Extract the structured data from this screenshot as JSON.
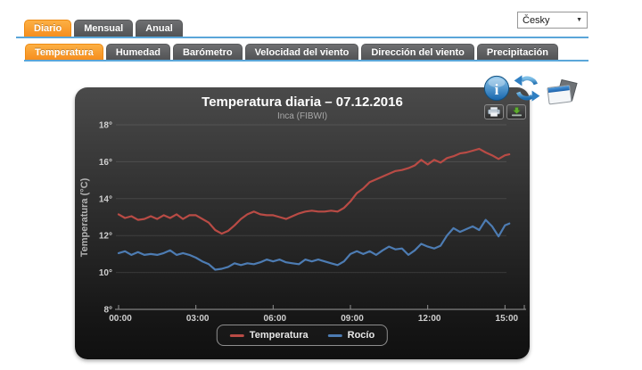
{
  "header": {
    "period_tabs": [
      {
        "label": "Diario",
        "active": true
      },
      {
        "label": "Mensual",
        "active": false
      },
      {
        "label": "Anual",
        "active": false
      }
    ],
    "metric_tabs": [
      {
        "label": "Temperatura",
        "active": true
      },
      {
        "label": "Humedad",
        "active": false
      },
      {
        "label": "Barómetro",
        "active": false
      },
      {
        "label": "Velocidad del viento",
        "active": false
      },
      {
        "label": "Dirección del viento",
        "active": false
      },
      {
        "label": "Precipitación",
        "active": false
      }
    ],
    "language_select": {
      "value": "Česky"
    }
  },
  "chart_data": {
    "type": "line",
    "title": "Temperatura diaria – 07.12.2016",
    "subtitle": "Inca (FIBWI)",
    "ylabel": "Temperatura (°C)",
    "xlabel": "",
    "ylim": [
      8,
      18
    ],
    "xlim_hours": [
      0,
      15.75
    ],
    "grid": "horizontal-only",
    "legend_position": "bottom-center",
    "background": "dark-gradient",
    "axis_label_color": "#cfcfcf",
    "yticks": [
      {
        "v": 18,
        "label": "18°"
      },
      {
        "v": 16,
        "label": "16°"
      },
      {
        "v": 14,
        "label": "14°"
      },
      {
        "v": 12,
        "label": "12°"
      },
      {
        "v": 10,
        "label": "10°"
      },
      {
        "v": 8,
        "label": "8°"
      }
    ],
    "xticks": [
      {
        "h": 0,
        "label": "00:00"
      },
      {
        "h": 3,
        "label": "03:00"
      },
      {
        "h": 6,
        "label": "06:00"
      },
      {
        "h": 9,
        "label": "09:00"
      },
      {
        "h": 12,
        "label": "12:00"
      },
      {
        "h": 15,
        "label": "15:00"
      }
    ],
    "x_hours": [
      0,
      0.25,
      0.5,
      0.75,
      1,
      1.25,
      1.5,
      1.75,
      2,
      2.25,
      2.5,
      2.75,
      3,
      3.25,
      3.5,
      3.75,
      4,
      4.25,
      4.5,
      4.75,
      5,
      5.25,
      5.5,
      5.75,
      6,
      6.25,
      6.5,
      6.75,
      7,
      7.25,
      7.5,
      7.75,
      8,
      8.25,
      8.5,
      8.75,
      9,
      9.25,
      9.5,
      9.75,
      10,
      10.25,
      10.5,
      10.75,
      11,
      11.25,
      11.5,
      11.75,
      12,
      12.25,
      12.5,
      12.75,
      13,
      13.25,
      13.5,
      13.75,
      14,
      14.25,
      14.5,
      14.75,
      15,
      15.17
    ],
    "series": [
      {
        "name": "Temperatura",
        "color": "#b94b45",
        "values": [
          13.15,
          12.95,
          13.05,
          12.85,
          12.9,
          13.05,
          12.9,
          13.1,
          12.95,
          13.15,
          12.9,
          13.1,
          13.1,
          12.9,
          12.7,
          12.3,
          12.1,
          12.25,
          12.55,
          12.9,
          13.15,
          13.3,
          13.15,
          13.1,
          13.1,
          13,
          12.9,
          13.05,
          13.2,
          13.3,
          13.35,
          13.3,
          13.3,
          13.35,
          13.3,
          13.5,
          13.85,
          14.3,
          14.55,
          14.9,
          15.05,
          15.2,
          15.35,
          15.5,
          15.55,
          15.65,
          15.8,
          16.1,
          15.85,
          16.1,
          15.95,
          16.2,
          16.3,
          16.45,
          16.5,
          16.6,
          16.7,
          16.5,
          16.35,
          16.15,
          16.35,
          16.4
        ]
      },
      {
        "name": "Rocío",
        "color": "#4d7cb3",
        "values": [
          11.05,
          11.15,
          10.95,
          11.1,
          10.95,
          11,
          10.95,
          11.05,
          11.2,
          10.95,
          11.05,
          10.95,
          10.8,
          10.6,
          10.45,
          10.15,
          10.2,
          10.3,
          10.5,
          10.4,
          10.5,
          10.45,
          10.55,
          10.7,
          10.6,
          10.7,
          10.55,
          10.5,
          10.45,
          10.7,
          10.6,
          10.7,
          10.6,
          10.5,
          10.4,
          10.6,
          11,
          11.15,
          11,
          11.15,
          10.95,
          11.2,
          11.4,
          11.25,
          11.3,
          10.95,
          11.2,
          11.55,
          11.4,
          11.3,
          11.45,
          12,
          12.4,
          12.2,
          12.35,
          12.5,
          12.3,
          12.85,
          12.5,
          11.95,
          12.55,
          12.65
        ]
      }
    ]
  }
}
